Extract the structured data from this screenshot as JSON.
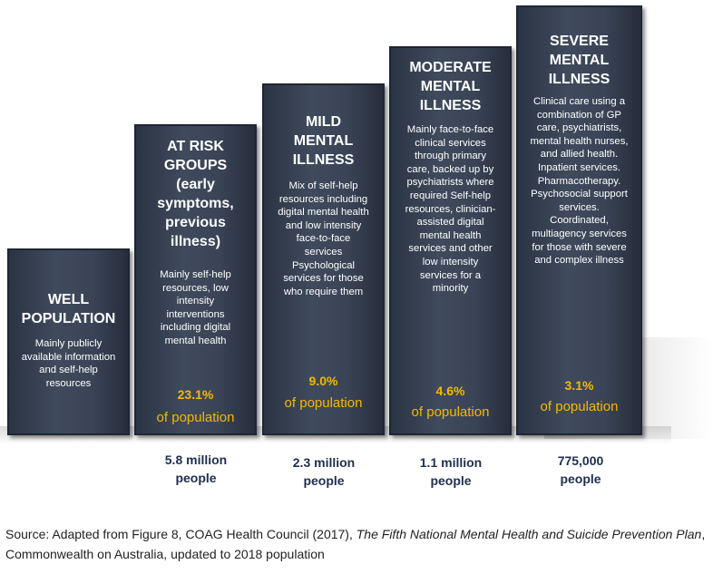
{
  "columns": [
    {
      "title": "WELL POPULATION",
      "description": "Mainly publicly available information and self-help resources",
      "percent": "",
      "population_label": "",
      "people": "",
      "share_of_population_pct": null
    },
    {
      "title": "AT RISK GROUPS (early symptoms, previous illness)",
      "description": "Mainly self-help resources, low intensity interventions including digital mental health",
      "percent": "23.1%",
      "population_label": "of population",
      "people": "5.8 million people",
      "share_of_population_pct": 23.1
    },
    {
      "title": "MILD MENTAL ILLNESS",
      "description": "Mix of self-help resources including digital mental health and low intensity face-to-face services Psychological services for those who require them",
      "percent": "9.0%",
      "population_label": "of population",
      "people": "2.3 million people",
      "share_of_population_pct": 9.0
    },
    {
      "title": "MODERATE MENTAL ILLNESS",
      "description": "Mainly face-to-face clinical services through primary care, backed up by psychiatrists where required Self-help resources, clinician-assisted digital mental health services and other low intensity services for a minority",
      "percent": "4.6%",
      "population_label": "of population",
      "people": "1.1 million people",
      "share_of_population_pct": 4.6
    },
    {
      "title": "SEVERE MENTAL ILLNESS",
      "description": "Clinical care using a combination of GP care, psychiatrists, mental health nurses, and allied health. Inpatient services. Pharmacotherapy. Psychosocial support services. Coordinated, multiagency services for those with severe and complex illness",
      "percent": "3.1%",
      "population_label": "of population",
      "people": "775,000 people",
      "share_of_population_pct": 3.1
    }
  ],
  "source": {
    "prefix": "Source: Adapted from Figure 8, COAG Health Council (2017), ",
    "title_italic": "The Fifth National Mental Health and Suicide Prevention Plan",
    "suffix": ", Commonwealth on Australia, updated to 2018 population"
  },
  "colors": {
    "column_fill": "#3a4456",
    "column_border": "#1f2633",
    "heading_text": "#ffffff",
    "percent_text": "#f5b800",
    "people_text": "#1f2f50"
  }
}
